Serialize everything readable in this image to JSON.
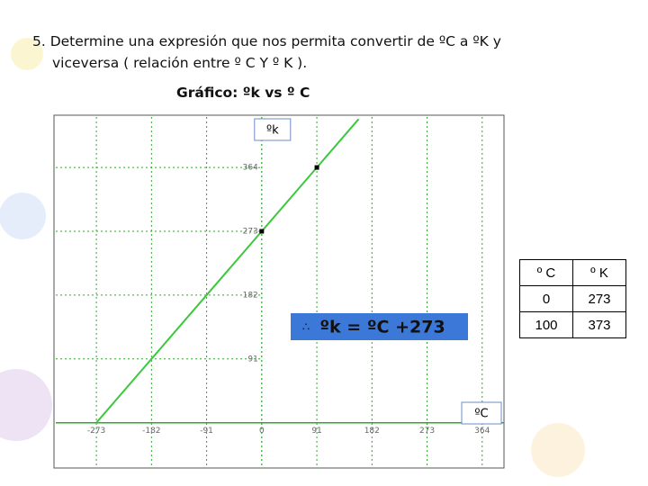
{
  "heading": [
    "5. Determine una expresión que nos permita convertir de ºC a ºK y",
    "viceversa ( relación entre º C Y º K )."
  ],
  "chart_data": {
    "type": "line",
    "title": "Gráfico: ºk vs º C",
    "y_label": "ºk",
    "x_label": "ºC",
    "x": [
      -273,
      0,
      91,
      160
    ],
    "series": [
      {
        "color": "#3cc83c",
        "values": [
          0,
          273,
          364,
          433
        ]
      }
    ],
    "markers": {
      "x": [
        0,
        91
      ],
      "y": [
        273,
        364
      ],
      "color": "#000000"
    },
    "xlim": [
      -340,
      400
    ],
    "ylim": [
      -62,
      436
    ],
    "xticks": [
      -273,
      -182,
      -91,
      0,
      91,
      182,
      273,
      364
    ],
    "yticks": [
      91,
      182,
      273,
      364
    ],
    "grid": true,
    "grid_color": "#2ea82e",
    "annotation": {
      "prefix": "∴",
      "text": "ºk = ºC +273"
    }
  },
  "table": {
    "header": [
      "º C",
      "º K"
    ],
    "rows": [
      [
        0,
        273
      ],
      [
        100,
        373
      ]
    ]
  }
}
